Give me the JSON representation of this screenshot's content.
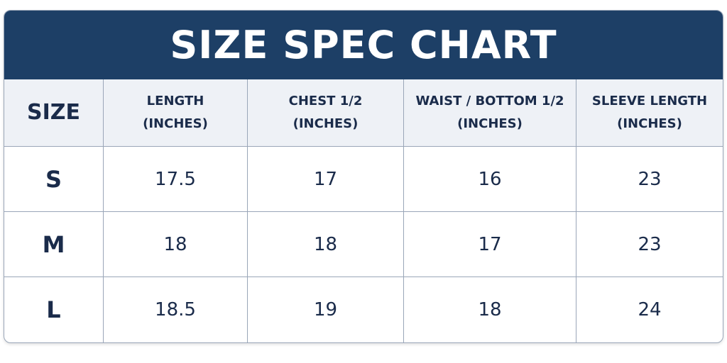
{
  "header": {
    "title": "SIZE SPEC CHART"
  },
  "table": {
    "columns": [
      [
        "SIZE"
      ],
      [
        "LENGTH",
        "(INCHES)"
      ],
      [
        "CHEST 1/2",
        "(INCHES)"
      ],
      [
        "WAIST / BOTTOM 1/2",
        "(INCHES)"
      ],
      [
        "SLEEVE LENGTH",
        "(INCHES)"
      ]
    ],
    "rows": [
      [
        "S",
        17.5,
        17,
        16,
        23
      ],
      [
        "M",
        18,
        18,
        17,
        23
      ],
      [
        "L",
        18.5,
        19,
        18,
        24
      ]
    ]
  }
}
